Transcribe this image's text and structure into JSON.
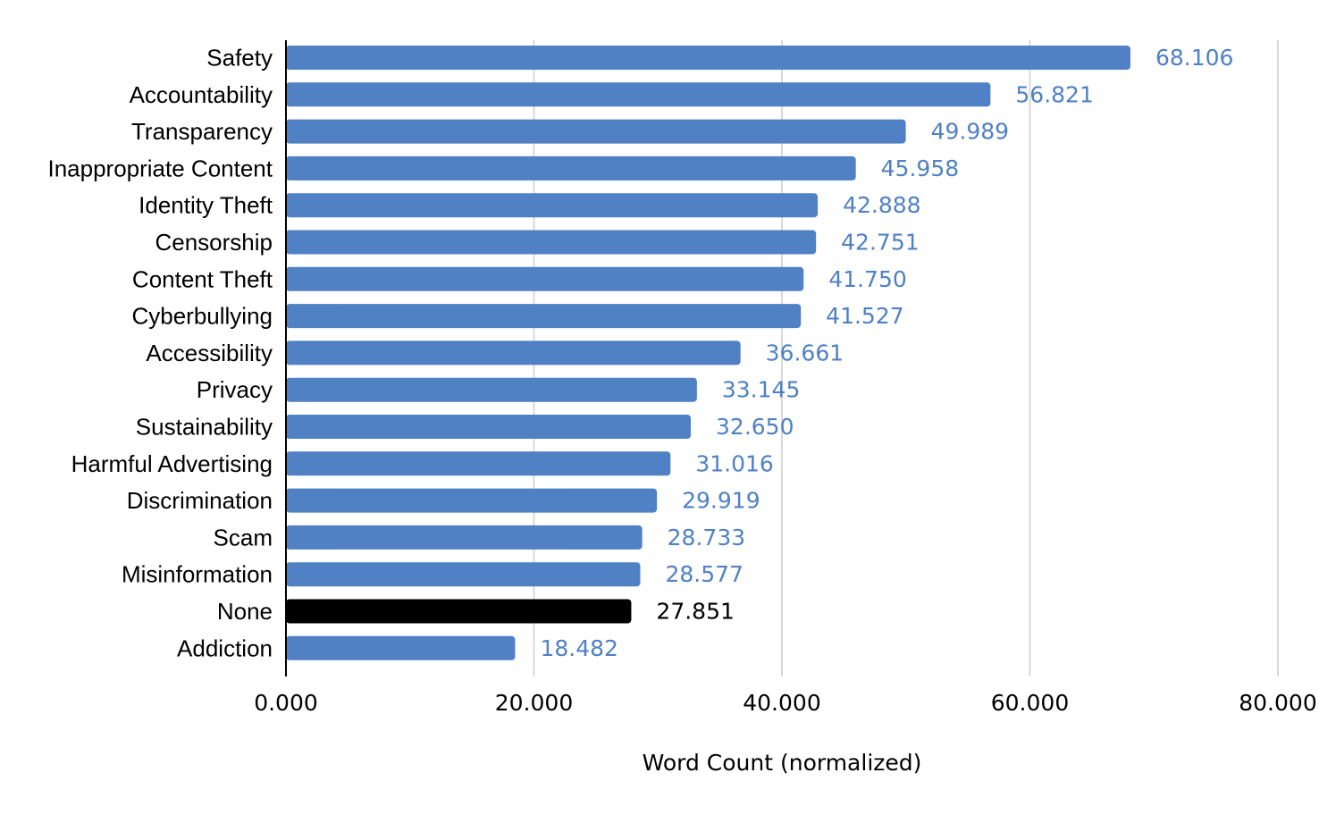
{
  "chart_data": {
    "type": "bar",
    "orientation": "horizontal",
    "categories": [
      "Safety",
      "Accountability",
      "Transparency",
      "Inappropriate Content",
      "Identity Theft",
      "Censorship",
      "Content Theft",
      "Cyberbullying",
      "Accessibility",
      "Privacy",
      "Sustainability",
      "Harmful Advertising",
      "Discrimination",
      "Scam",
      "Misinformation",
      "None",
      "Addiction"
    ],
    "values": [
      68.106,
      56.821,
      49.989,
      45.958,
      42.888,
      42.751,
      41.75,
      41.527,
      36.661,
      33.145,
      32.65,
      31.016,
      29.919,
      28.733,
      28.577,
      27.851,
      18.482
    ],
    "value_labels": [
      "68.106",
      "56.821",
      "49.989",
      "45.958",
      "42.888",
      "42.751",
      "41.750",
      "41.527",
      "36.661",
      "33.145",
      "32.650",
      "31.016",
      "29.919",
      "28.733",
      "28.577",
      "27.851",
      "18.482"
    ],
    "xlabel": "Word Count (normalized)",
    "ylabel": "",
    "xlim": [
      0,
      80
    ],
    "x_ticks": [
      0,
      20,
      40,
      60,
      80
    ],
    "x_tick_labels": [
      "0.000",
      "20.000",
      "40.000",
      "60.000",
      "80.000"
    ],
    "grid": "vertical",
    "legend": "none",
    "colors": {
      "default_bar": "#4f81c4",
      "highlight_bar": "#000000",
      "default_label": "#4f81c4",
      "highlight_label": "#000000",
      "grid": "#d9d9d9",
      "axis": "#000000"
    },
    "highlight_category": "None"
  }
}
